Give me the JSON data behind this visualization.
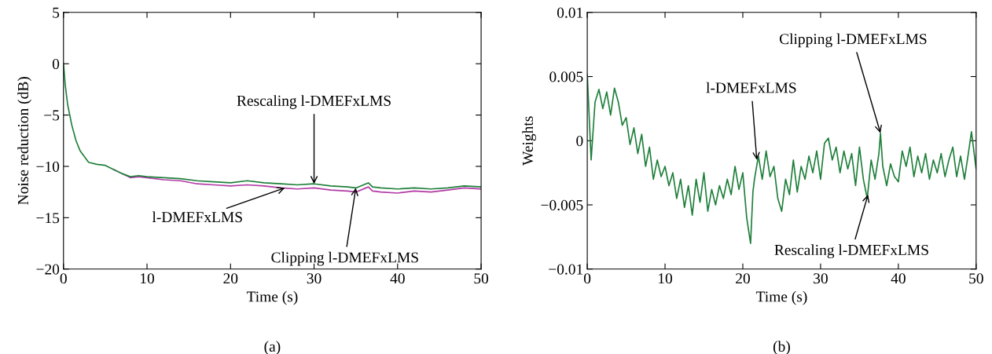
{
  "chart_data": [
    {
      "type": "line",
      "xlabel": "Time (s)",
      "ylabel": "Noise reduction (dB)",
      "xlim": [
        0,
        50
      ],
      "ylim": [
        -20,
        5
      ],
      "xticks": [
        0,
        10,
        20,
        30,
        40,
        50
      ],
      "yticks": [
        {
          "value": -20,
          "label": "−20"
        },
        {
          "value": -15,
          "label": "−15"
        },
        {
          "value": -10,
          "label": "−10"
        },
        {
          "value": -5,
          "label": "−5"
        },
        0,
        5
      ],
      "grid": false,
      "x": [
        0,
        0.2,
        0.5,
        1,
        1.5,
        2,
        3,
        4,
        5,
        6,
        7,
        8,
        9,
        10,
        12,
        14,
        16,
        18,
        20,
        22,
        24,
        26,
        28,
        30,
        32,
        34,
        35,
        36.5,
        37,
        38,
        40,
        42,
        44,
        46,
        48,
        50
      ],
      "series": [
        {
          "color": "#b23aa6",
          "values": [
            null,
            null,
            null,
            null,
            null,
            null,
            null,
            null,
            null,
            -10.3,
            -10.7,
            -11.1,
            -11.0,
            -11.1,
            -11.3,
            -11.4,
            -11.7,
            -11.8,
            -11.9,
            -11.8,
            -11.9,
            -12.1,
            -12.2,
            -12.1,
            -12.3,
            -12.4,
            -12.5,
            -12.0,
            -12.4,
            -12.5,
            -12.6,
            -12.4,
            -12.5,
            -12.3,
            -12.1,
            -12.2
          ]
        },
        {
          "color": "#1e7f3a",
          "values": [
            0,
            -2,
            -4,
            -6,
            -7.5,
            -8.5,
            -9.6,
            -9.8,
            -9.9,
            -10.3,
            -10.7,
            -11.0,
            -10.9,
            -11.0,
            -11.1,
            -11.2,
            -11.4,
            -11.5,
            -11.6,
            -11.4,
            -11.6,
            -11.7,
            -11.8,
            -11.7,
            -11.9,
            -12.0,
            -12.1,
            -11.6,
            -12.0,
            -12.1,
            -12.2,
            -12.1,
            -12.2,
            -12.1,
            -11.9,
            -12.0
          ]
        }
      ],
      "annotations": [
        {
          "text": "Rescaling l-DMEFxLMS",
          "x": 30,
          "y": -11.7
        },
        {
          "text": "l-DMEFxLMS",
          "x": 26.5,
          "y": -12.1
        },
        {
          "text": "Clipping l-DMEFxLMS",
          "x": 35,
          "y": -12.1
        },
        "(a)"
      ]
    },
    {
      "type": "line",
      "xlabel": "Time (s)",
      "ylabel": "Weights",
      "xlim": [
        0,
        50
      ],
      "ylim": [
        -0.01,
        0.01
      ],
      "xticks": [
        0,
        10,
        20,
        30,
        40,
        50
      ],
      "yticks": [
        {
          "value": -0.01,
          "label": "−0.01"
        },
        {
          "value": -0.005,
          "label": "−0.005"
        },
        0,
        0.005,
        0.01
      ],
      "grid": false,
      "x": [
        0,
        0.5,
        1,
        1.5,
        2,
        2.5,
        3,
        3.5,
        4,
        4.5,
        5,
        5.5,
        6,
        6.5,
        7,
        7.5,
        8,
        8.5,
        9,
        9.5,
        10,
        10.5,
        11,
        11.5,
        12,
        12.5,
        13,
        13.5,
        14,
        14.5,
        15,
        15.5,
        16,
        16.5,
        17,
        17.5,
        18,
        18.5,
        19,
        19.5,
        20,
        20.5,
        21,
        21.3,
        21.5,
        22,
        22.5,
        23,
        23.5,
        24,
        24.5,
        25,
        25.5,
        26,
        26.5,
        27,
        27.5,
        28,
        28.5,
        29,
        29.5,
        30,
        30.5,
        31,
        31.5,
        32,
        32.5,
        33,
        33.5,
        34,
        34.5,
        35,
        35.5,
        36,
        36.5,
        37,
        37.5,
        37.7,
        38,
        38.5,
        39,
        39.5,
        40,
        40.5,
        41,
        41.5,
        42,
        42.5,
        43,
        43.5,
        44,
        44.5,
        45,
        45.5,
        46,
        46.5,
        47,
        47.5,
        48,
        48.5,
        49,
        49.4,
        50
      ],
      "series": [
        {
          "color": "#1e7f3a",
          "values": [
            0.0052,
            -0.0015,
            0.003,
            0.004,
            0.0025,
            0.0038,
            0.002,
            0.0041,
            0.003,
            0.0012,
            0.0018,
            -0.0003,
            0.001,
            -0.001,
            0.0005,
            -0.002,
            -0.0005,
            -0.003,
            -0.0015,
            -0.0028,
            -0.002,
            -0.0035,
            -0.0025,
            -0.0045,
            -0.003,
            -0.0052,
            -0.0035,
            -0.0058,
            -0.003,
            -0.0048,
            -0.0025,
            -0.0055,
            -0.0038,
            -0.005,
            -0.0035,
            -0.0045,
            -0.003,
            -0.0042,
            -0.002,
            -0.0038,
            -0.0025,
            -0.006,
            -0.008,
            -0.004,
            -0.003,
            -0.0012,
            -0.003,
            -0.0008,
            -0.0028,
            -0.002,
            -0.0045,
            -0.0055,
            -0.003,
            -0.0042,
            -0.0015,
            -0.004,
            -0.002,
            -0.003,
            -0.0012,
            -0.0025,
            -0.0008,
            -0.003,
            -0.0002,
            0.0002,
            -0.0015,
            -0.0005,
            -0.0025,
            -0.0008,
            -0.0022,
            -0.001,
            -0.0035,
            -0.0005,
            -0.003,
            -0.0045,
            -0.0015,
            -0.003,
            -0.001,
            0.0006,
            -0.002,
            -0.0035,
            -0.0018,
            -0.0028,
            -0.0032,
            -0.0008,
            -0.002,
            -0.0005,
            -0.0028,
            -0.0012,
            -0.0025,
            -0.001,
            -0.003,
            -0.0015,
            -0.0025,
            -0.001,
            -0.0028,
            -0.0015,
            -0.0005,
            -0.0028,
            -0.0012,
            -0.003,
            -0.001,
            0.0007,
            -0.0022
          ]
        }
      ],
      "annotations": [
        {
          "text": "l-DMEFxLMS",
          "x": 21.8,
          "y": -0.0015
        },
        {
          "text": "Clipping l-DMEFxLMS",
          "x": 37.7,
          "y": 0.0006
        },
        {
          "text": "Rescaling l-DMEFxLMS",
          "x": 36.1,
          "y": -0.0042
        },
        "(b)"
      ]
    }
  ]
}
